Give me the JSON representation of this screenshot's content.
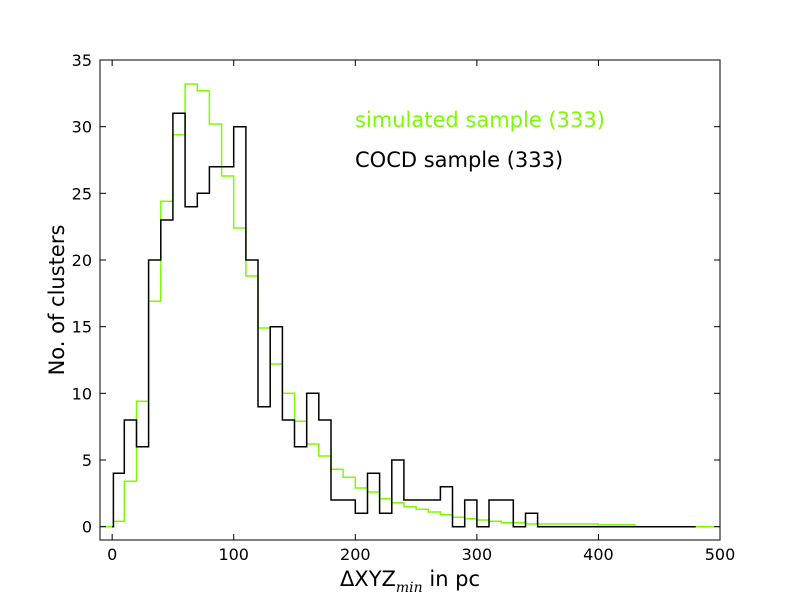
{
  "chart_data": {
    "type": "histogram-step",
    "xlabel_main": "ΔXYZ",
    "xlabel_sub": "min",
    "xlabel_suffix": " in pc",
    "ylabel": "No. of clusters",
    "xlim": [
      -10,
      500
    ],
    "ylim": [
      -1,
      35
    ],
    "xticks": [
      0,
      100,
      200,
      300,
      400,
      500
    ],
    "yticks": [
      0,
      5,
      10,
      15,
      20,
      25,
      30,
      35
    ],
    "legend_placement": "top-right (in-plot text)",
    "series": [
      {
        "name": "simulated sample (333)",
        "color": "#7cfc00",
        "edges": [
          -10,
          1,
          10,
          20,
          30,
          40,
          50,
          60,
          70,
          80,
          90,
          100,
          110,
          120,
          130,
          140,
          150,
          160,
          170,
          180,
          190,
          200,
          210,
          220,
          230,
          240,
          250,
          260,
          270,
          280,
          290,
          300,
          310,
          320,
          330,
          340,
          350,
          360,
          370,
          380,
          390,
          400,
          430,
          480,
          500
        ],
        "values": [
          0,
          0.4,
          3.4,
          9.4,
          16.9,
          24.4,
          29.4,
          33.2,
          32.7,
          30.2,
          26.3,
          22.4,
          18.8,
          14.9,
          12.2,
          10.0,
          7.9,
          6.2,
          5.3,
          4.3,
          3.7,
          2.9,
          2.6,
          2.1,
          1.8,
          1.5,
          1.3,
          1.1,
          0.9,
          0.7,
          0.6,
          0.5,
          0.4,
          0.3,
          0.3,
          0.2,
          0.2,
          0.2,
          0.2,
          0.2,
          0.2,
          0.15,
          0.0,
          0.0
        ]
      },
      {
        "name": "COCD sample (333)",
        "color": "#000000",
        "edges": [
          0,
          1,
          10,
          20,
          30,
          40,
          50,
          60,
          70,
          80,
          90,
          100,
          110,
          120,
          130,
          140,
          150,
          160,
          170,
          180,
          190,
          200,
          210,
          220,
          230,
          240,
          250,
          260,
          270,
          280,
          290,
          300,
          310,
          320,
          330,
          340,
          350,
          360,
          480
        ],
        "values": [
          0,
          4,
          8,
          6,
          20,
          23,
          31,
          24,
          25,
          27,
          27,
          30,
          20,
          9,
          15,
          8,
          6,
          10,
          8,
          2,
          2,
          1,
          4,
          1,
          5,
          2,
          2,
          2,
          3,
          0,
          2,
          0,
          2,
          2,
          0,
          1,
          0,
          0
        ]
      }
    ]
  }
}
